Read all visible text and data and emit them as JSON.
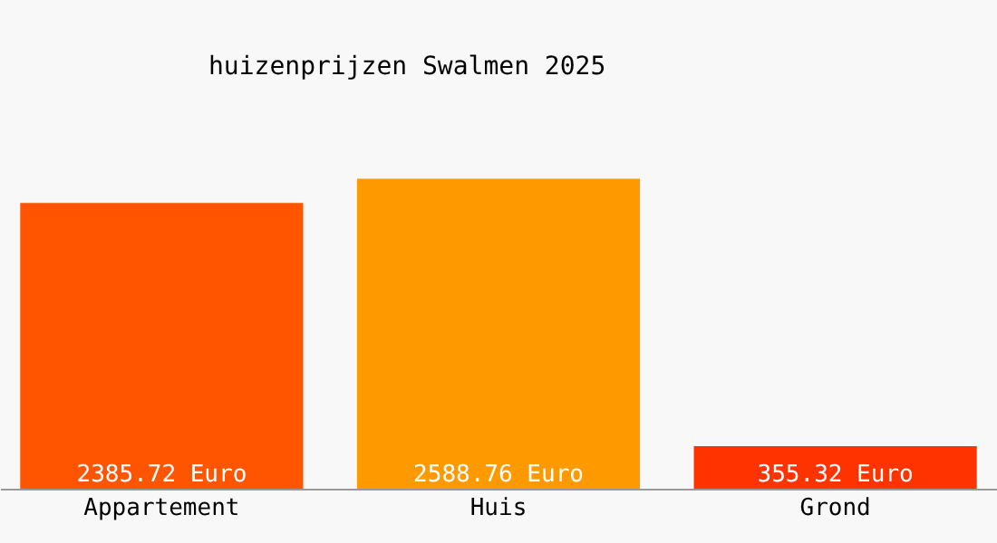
{
  "chart_data": {
    "type": "bar",
    "title": "huizenprijzen Swalmen 2025",
    "categories": [
      "Appartement",
      "Huis",
      "Grond"
    ],
    "values": [
      2385.72,
      2588.76,
      355.32
    ],
    "colors": [
      "#ff5500",
      "#ff9900",
      "#ff3300"
    ],
    "value_labels": [
      "2385.72 Euro",
      "2588.76 Euro",
      "355.32 Euro"
    ]
  }
}
